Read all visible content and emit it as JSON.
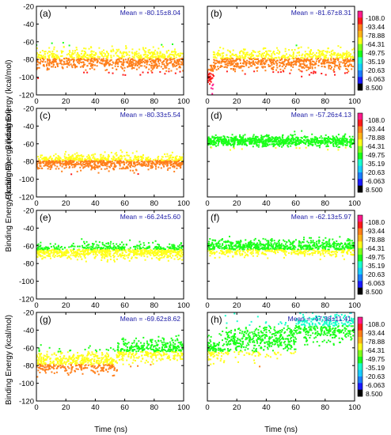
{
  "chart_data": {
    "type": "scatter",
    "xlabel": "Time (ns)",
    "ylabel": "Binding Energy (kcal/mol)",
    "xlim": [
      0,
      100
    ],
    "ylim": [
      -120,
      -20
    ],
    "xticks": [
      "0",
      "20",
      "40",
      "60",
      "80",
      "100"
    ],
    "yticks": [
      "-20",
      "-40",
      "-60",
      "-80",
      "-100",
      "-120"
    ],
    "grid": false,
    "colorbar": {
      "labels": [
        "-108.0",
        "-93.44",
        "-78.88",
        "-64.31",
        "-49.75",
        "-35.19",
        "-20.63",
        "-6.063",
        "8.500"
      ],
      "colors": [
        "#ff1a8c",
        "#ff1a1a",
        "#ff7f1a",
        "#ffb319",
        "#ffff1a",
        "#7fff1a",
        "#1aff1a",
        "#19ffcc",
        "#19ccff",
        "#1a7fff",
        "#1a1aff",
        "#000000"
      ]
    },
    "panels": [
      {
        "label": "(a)",
        "mean_text": "Mean = -80.15±8.04",
        "mean": -80.15,
        "sd": 8.04,
        "segments": [
          {
            "from": 0,
            "to": 100,
            "mean": -80.15
          }
        ]
      },
      {
        "label": "(b)",
        "mean_text": "Mean = -81.67±8.31",
        "mean": -81.67,
        "sd": 8.31,
        "segments": [
          {
            "from": 0,
            "to": 4,
            "mean": -98
          },
          {
            "from": 4,
            "to": 100,
            "mean": -81
          }
        ]
      },
      {
        "label": "(c)",
        "mean_text": "Mean = -80.33±5.54",
        "mean": -80.33,
        "sd": 5.54,
        "segments": [
          {
            "from": 0,
            "to": 100,
            "mean": -80.33
          }
        ]
      },
      {
        "label": "(d)",
        "mean_text": "Mean = -57.26±4.13",
        "mean": -57.26,
        "sd": 4.13,
        "segments": [
          {
            "from": 0,
            "to": 100,
            "mean": -57.26
          }
        ]
      },
      {
        "label": "(e)",
        "mean_text": "Mean = -66.24±5.60",
        "mean": -66.24,
        "sd": 5.6,
        "segments": [
          {
            "from": 0,
            "to": 100,
            "mean": -66.24
          }
        ]
      },
      {
        "label": "(f)",
        "mean_text": "Mean = -62.13±5.97",
        "mean": -62.13,
        "sd": 5.97,
        "segments": [
          {
            "from": 0,
            "to": 100,
            "mean": -62.13
          }
        ]
      },
      {
        "label": "(g)",
        "mean_text": "Mean = -69.62±8.62",
        "mean": -69.62,
        "sd": 8.62,
        "segments": [
          {
            "from": 0,
            "to": 55,
            "mean": -76
          },
          {
            "from": 55,
            "to": 100,
            "mean": -63
          }
        ]
      },
      {
        "label": "(h)",
        "mean_text": "Mean = -47.98±11.41",
        "mean": -47.98,
        "sd": 11.41,
        "segments": [
          {
            "from": 0,
            "to": 12,
            "mean": -62
          },
          {
            "from": 12,
            "to": 60,
            "mean": -52
          },
          {
            "from": 60,
            "to": 100,
            "mean": -36
          }
        ]
      }
    ]
  }
}
